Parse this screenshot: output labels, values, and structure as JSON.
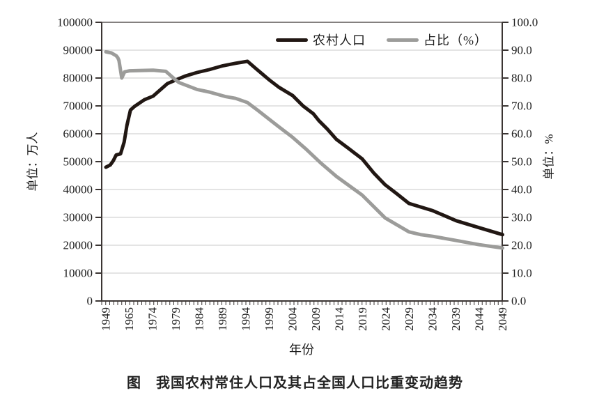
{
  "figure": {
    "caption": "图　我国农村常住人口及其占全国人口比重变动趋势"
  },
  "colors": {
    "rural_line": "#211713",
    "share_line": "#9c9c9a",
    "grid": "#c9c9c9",
    "axis": "#3b3533",
    "text": "#1c1c1c"
  },
  "chart_data": {
    "type": "line",
    "title": "",
    "grid": "horizontal",
    "legend_position": "top-inside",
    "x_axis": {
      "title": "年份",
      "labels": [
        "1949",
        "1965",
        "1974",
        "1979",
        "1984",
        "1989",
        "1994",
        "1999",
        "2004",
        "2009",
        "2014",
        "2019",
        "2024",
        "2029",
        "2034",
        "2039",
        "2044",
        "2049"
      ],
      "note": "labels evenly spaced; dense minor tick per underlying yearly category; series points given as fraction t (0=1949 label, 1=2049 label)"
    },
    "y_left": {
      "title": "单位：万人",
      "min": 0,
      "max": 100000,
      "tick_step": 10000,
      "tick_labels_top_down": [
        "100000",
        "90000",
        "80000",
        "70000",
        "60000",
        "50000",
        "40000",
        "30000",
        "20000",
        "10000",
        "0"
      ]
    },
    "y_right": {
      "title": "单位：%",
      "min": 0,
      "max": 100,
      "tick_step": 10,
      "tick_labels_top_down": [
        "100.0",
        "90.0",
        "80.0",
        "70.0",
        "60.0",
        "50.0",
        "40.0",
        "30.0",
        "20.0",
        "10.0",
        "0.0"
      ]
    },
    "legend": [
      {
        "label": "农村人口",
        "color": "#211713"
      },
      {
        "label": "占比（%）",
        "color": "#9c9c9a"
      }
    ],
    "series": [
      {
        "name": "农村人口",
        "axis": "left",
        "color": "#211713",
        "width": 5,
        "points": [
          [
            0.0,
            48000
          ],
          [
            0.011,
            48800
          ],
          [
            0.019,
            50400
          ],
          [
            0.026,
            52400
          ],
          [
            0.037,
            52800
          ],
          [
            0.046,
            57000
          ],
          [
            0.053,
            63000
          ],
          [
            0.062,
            68500
          ],
          [
            0.072,
            69800
          ],
          [
            0.097,
            72200
          ],
          [
            0.119,
            73500
          ],
          [
            0.155,
            78000
          ],
          [
            0.176,
            79300
          ],
          [
            0.2,
            80700
          ],
          [
            0.23,
            82000
          ],
          [
            0.26,
            83000
          ],
          [
            0.295,
            84400
          ],
          [
            0.327,
            85300
          ],
          [
            0.357,
            86000
          ],
          [
            0.378,
            83400
          ],
          [
            0.413,
            79200
          ],
          [
            0.436,
            76700
          ],
          [
            0.471,
            73700
          ],
          [
            0.497,
            70000
          ],
          [
            0.523,
            67200
          ],
          [
            0.537,
            64700
          ],
          [
            0.558,
            61700
          ],
          [
            0.581,
            58000
          ],
          [
            0.611,
            54800
          ],
          [
            0.646,
            51000
          ],
          [
            0.676,
            45800
          ],
          [
            0.704,
            41700
          ],
          [
            0.734,
            38400
          ],
          [
            0.764,
            35000
          ],
          [
            0.824,
            32400
          ],
          [
            0.883,
            28800
          ],
          [
            0.941,
            26300
          ],
          [
            1.0,
            23800
          ]
        ]
      },
      {
        "name": "占比（%）",
        "axis": "right",
        "color": "#9c9c9a",
        "width": 5,
        "points": [
          [
            0.0,
            89.4
          ],
          [
            0.014,
            89.0
          ],
          [
            0.026,
            88.0
          ],
          [
            0.03,
            87.3
          ],
          [
            0.033,
            86.3
          ],
          [
            0.04,
            80.0
          ],
          [
            0.047,
            82.2
          ],
          [
            0.06,
            82.6
          ],
          [
            0.084,
            82.7
          ],
          [
            0.119,
            82.8
          ],
          [
            0.151,
            82.4
          ],
          [
            0.176,
            79.3
          ],
          [
            0.184,
            78.4
          ],
          [
            0.23,
            75.9
          ],
          [
            0.26,
            75.0
          ],
          [
            0.3,
            73.4
          ],
          [
            0.327,
            72.7
          ],
          [
            0.357,
            71.2
          ],
          [
            0.383,
            68.4
          ],
          [
            0.436,
            62.5
          ],
          [
            0.471,
            58.7
          ],
          [
            0.506,
            54.3
          ],
          [
            0.541,
            49.6
          ],
          [
            0.581,
            44.7
          ],
          [
            0.646,
            38.0
          ],
          [
            0.704,
            29.8
          ],
          [
            0.734,
            27.3
          ],
          [
            0.764,
            24.8
          ],
          [
            0.794,
            23.8
          ],
          [
            0.824,
            23.2
          ],
          [
            0.883,
            21.7
          ],
          [
            0.941,
            20.2
          ],
          [
            1.0,
            19.0
          ]
        ]
      }
    ],
    "values_at_labels": {
      "years": [
        1949,
        1965,
        1974,
        1979,
        1984,
        1989,
        1994,
        1999,
        2004,
        2009,
        2014,
        2019,
        2024,
        2029,
        2034,
        2039,
        2044,
        2049
      ],
      "rural_population_wan": [
        48000,
        67000,
        73400,
        79300,
        81300,
        84300,
        85800,
        79300,
        73700,
        66500,
        57500,
        51000,
        41700,
        35000,
        32400,
        28800,
        26300,
        23800
      ],
      "share_percent": [
        89.4,
        82.6,
        82.8,
        79.3,
        76.0,
        73.6,
        71.3,
        65.1,
        58.7,
        51.0,
        44.0,
        38.0,
        29.7,
        24.8,
        23.2,
        21.7,
        20.2,
        19.0
      ]
    }
  }
}
